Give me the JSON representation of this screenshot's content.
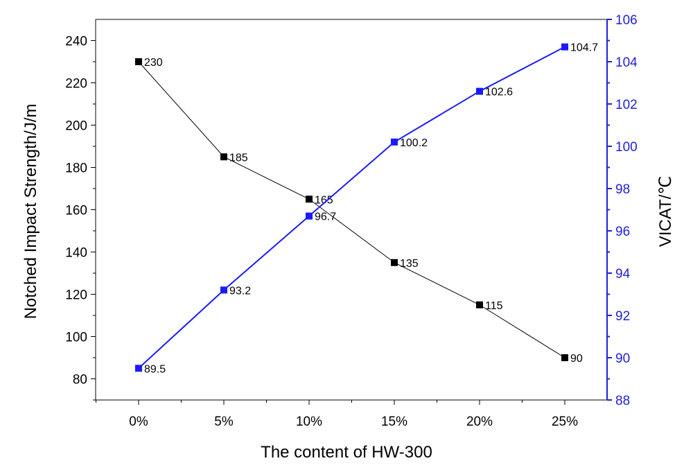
{
  "chart_data": {
    "type": "line",
    "title": "",
    "xlabel": "The content of HW-300",
    "categories": [
      "0%",
      "5%",
      "10%",
      "15%",
      "20%",
      "25%"
    ],
    "left_axis": {
      "label": "Notched Impact Strength/J/m",
      "ylim": [
        70,
        250
      ],
      "ticks": [
        80,
        100,
        120,
        140,
        160,
        180,
        200,
        220,
        240
      ],
      "color": "#000000"
    },
    "right_axis": {
      "label": "VICAT/℃",
      "ylim": [
        88,
        106
      ],
      "ticks": [
        88,
        90,
        92,
        94,
        96,
        98,
        100,
        102,
        104,
        106
      ],
      "color": "#1f1fd6"
    },
    "series": [
      {
        "name": "Notched Impact Strength",
        "axis": "left",
        "color": "#000000",
        "marker": "square",
        "values": [
          230,
          185,
          165,
          135,
          115,
          90
        ],
        "labels": [
          "230",
          "185",
          "165",
          "135",
          "115",
          "90"
        ]
      },
      {
        "name": "VICAT",
        "axis": "right",
        "color": "#1a1aff",
        "marker": "square",
        "values": [
          89.5,
          93.2,
          96.7,
          100.2,
          102.6,
          104.7
        ],
        "labels": [
          "89.5",
          "93.2",
          "96.7",
          "100.2",
          "102.6",
          "104.7"
        ]
      }
    ]
  }
}
